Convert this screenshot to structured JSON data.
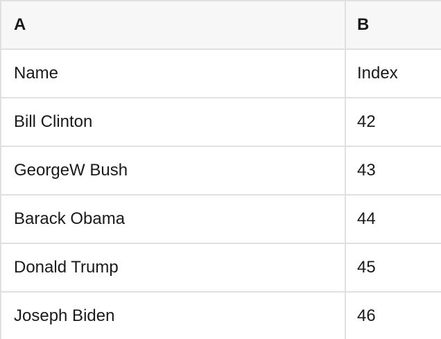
{
  "table": {
    "column_headers": [
      {
        "label": "A"
      },
      {
        "label": "B"
      }
    ],
    "rows": [
      {
        "cells": [
          "Name",
          "Index"
        ]
      },
      {
        "cells": [
          "Bill Clinton",
          "42"
        ]
      },
      {
        "cells": [
          "GeorgeW Bush",
          "43"
        ]
      },
      {
        "cells": [
          "Barack Obama",
          "44"
        ]
      },
      {
        "cells": [
          "Donald Trump",
          "45"
        ]
      },
      {
        "cells": [
          "Joseph Biden",
          "46"
        ]
      }
    ],
    "colors": {
      "header_background": "#f7f7f7",
      "cell_background": "#ffffff",
      "border": "#e0e0e0",
      "text": "#1a1a1a"
    }
  }
}
